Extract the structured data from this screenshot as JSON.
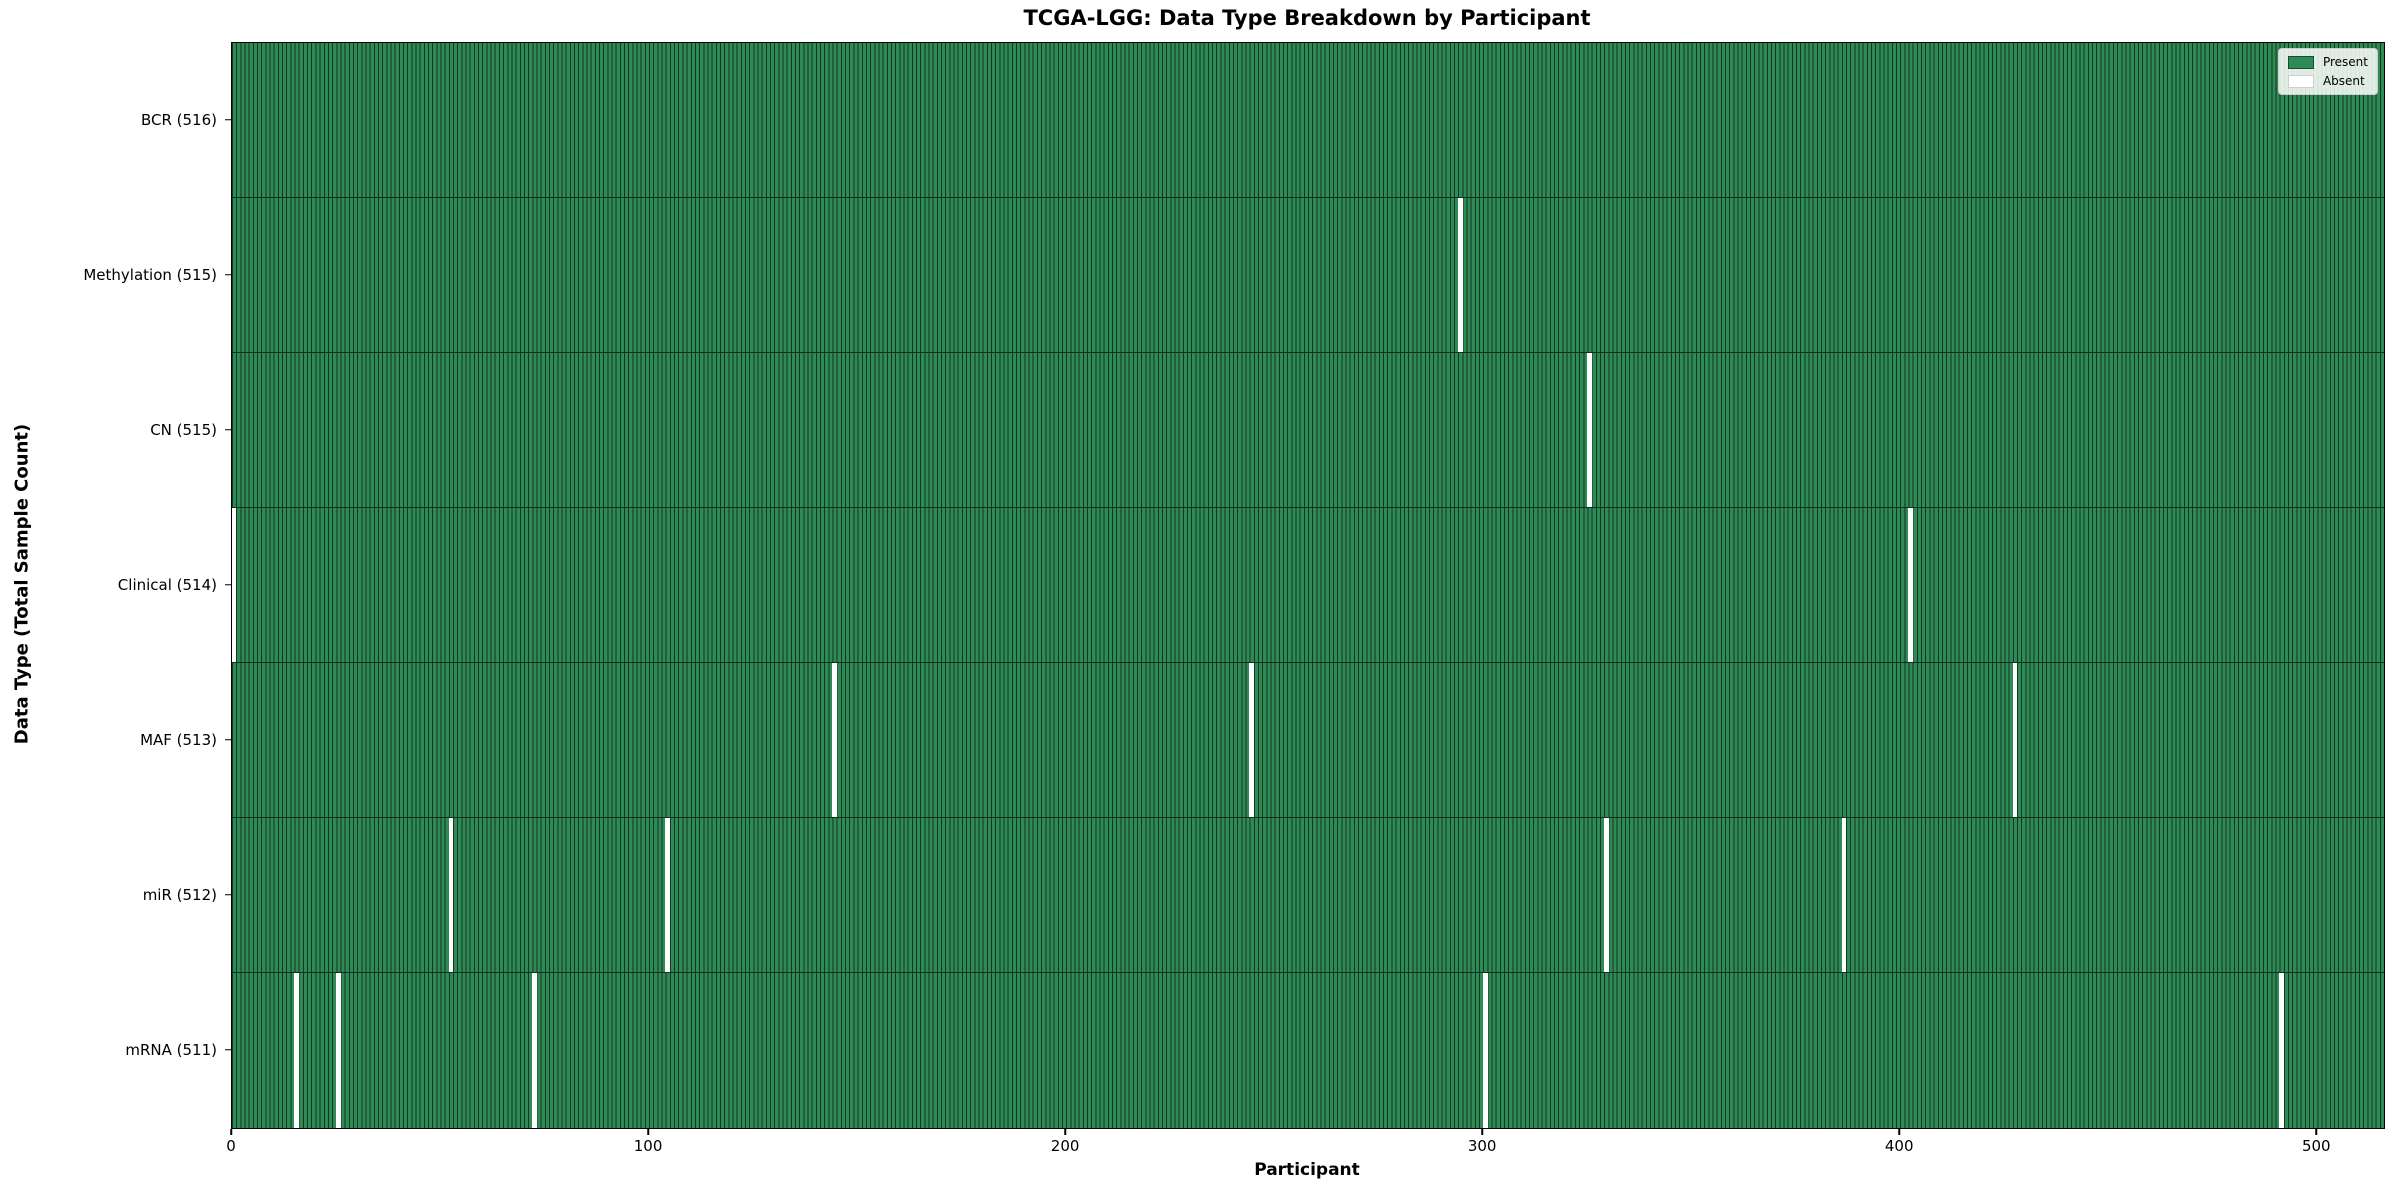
{
  "figure": {
    "title": "TCGA-LGG: Data Type Breakdown by Participant",
    "xlabel": "Participant",
    "ylabel": "Data Type (Total Sample Count)"
  },
  "colors": {
    "present": "#2e8b57",
    "absent": "#ffffff",
    "bar_edge": "#14361f",
    "present_swatch_edge": "#1d4a30",
    "absent_swatch_edge": "#d0d0d0"
  },
  "chart_data": {
    "type": "heatmap",
    "title": "TCGA-LGG: Data Type Breakdown by Participant",
    "xlabel": "Participant",
    "ylabel": "Data Type (Total Sample Count)",
    "n_participants": 516,
    "xlim": [
      0,
      516
    ],
    "x_ticks": [
      0,
      100,
      200,
      300,
      400,
      500
    ],
    "grid": false,
    "legend_position": "upper right",
    "legend": [
      {
        "label": "Present",
        "color": "#2e8b57"
      },
      {
        "label": "Absent",
        "color": "#ffffff"
      }
    ],
    "rows": [
      {
        "label": "BCR (516)",
        "data_type": "BCR",
        "total": 516,
        "absent_participants": []
      },
      {
        "label": "Methylation (515)",
        "data_type": "Methylation",
        "total": 515,
        "absent_participants": [
          294
        ]
      },
      {
        "label": "CN (515)",
        "data_type": "CN",
        "total": 515,
        "absent_participants": [
          325
        ]
      },
      {
        "label": "Clinical (514)",
        "data_type": "Clinical",
        "total": 514,
        "absent_participants": [
          0,
          402
        ]
      },
      {
        "label": "MAF (513)",
        "data_type": "MAF",
        "total": 513,
        "absent_participants": [
          144,
          244,
          427
        ]
      },
      {
        "label": "miR (512)",
        "data_type": "miR",
        "total": 512,
        "absent_participants": [
          52,
          104,
          329,
          386
        ]
      },
      {
        "label": "mRNA (511)",
        "data_type": "mRNA",
        "total": 511,
        "absent_participants": [
          15,
          25,
          72,
          300,
          491
        ]
      }
    ]
  }
}
